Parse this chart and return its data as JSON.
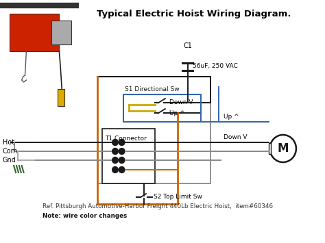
{
  "title": "Typical Electric Hoist Wiring Diagram.",
  "ref_text": "Ref. Pittsburgh Automotive-Harbor Freight 440Lb Electric Hoist,  item#60346",
  "note_text": "Note: wire color changes",
  "background_color": "#ffffff",
  "c1_label": "C1",
  "c1_sub": "56uF, 250 VAC",
  "s1_label": "S1 Directional Sw",
  "s2_label": "S2 Top Limit Sw",
  "t1_label": "T1 Connector",
  "hot_label": "Hot",
  "com_label": "Com",
  "gnd_label": "Gnd",
  "down_v_label1": "Down V",
  "up_label1": "Up ^",
  "down_v_label2": "Down V",
  "up_label2": "Up ^",
  "motor_label": "M"
}
